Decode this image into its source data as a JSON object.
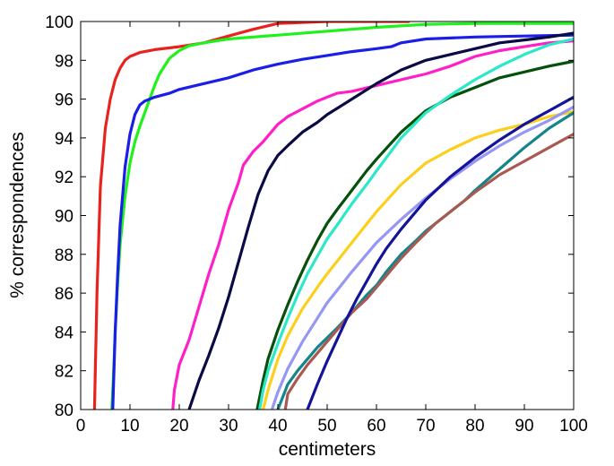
{
  "chart_data": {
    "type": "line",
    "title": "",
    "xlabel": "centimeters",
    "ylabel": "% correspondences",
    "xlim": [
      0,
      100
    ],
    "ylim": [
      80,
      100
    ],
    "xticks": [
      0,
      10,
      20,
      30,
      40,
      50,
      60,
      70,
      80,
      90,
      100
    ],
    "yticks": [
      80,
      82,
      84,
      86,
      88,
      90,
      92,
      94,
      96,
      98,
      100
    ],
    "grid": false,
    "legend": "none",
    "series": [
      {
        "color": "#e8231e",
        "x": [
          2.8,
          3.3,
          4,
          5,
          6,
          7,
          8,
          9,
          10,
          12,
          15,
          20,
          25,
          30,
          35,
          40,
          50,
          60,
          66.5
        ],
        "y": [
          80,
          86,
          91.5,
          94.5,
          96,
          97,
          97.6,
          98,
          98.2,
          98.4,
          98.55,
          98.7,
          98.9,
          99.25,
          99.6,
          99.9,
          100,
          100,
          100
        ]
      },
      {
        "color": "#1ff21a",
        "x": [
          6.3,
          6.6,
          7,
          7.5,
          8,
          9,
          10,
          11,
          12,
          13,
          14,
          15,
          16,
          18,
          20,
          22,
          25,
          30,
          40,
          50,
          60,
          70,
          80,
          90,
          100
        ],
        "y": [
          80,
          81.5,
          84,
          86.5,
          88.5,
          91,
          92.7,
          93.8,
          94.6,
          95.3,
          96,
          96.7,
          97.3,
          98.1,
          98.5,
          98.75,
          98.9,
          99.1,
          99.3,
          99.5,
          99.7,
          99.85,
          99.9,
          99.9,
          99.9
        ]
      },
      {
        "color": "#1a1ee6",
        "x": [
          6.5,
          7,
          7.5,
          8,
          9,
          10,
          11,
          12,
          13,
          15,
          18,
          20,
          25,
          30,
          35,
          40,
          45,
          50,
          55,
          60,
          63,
          65,
          70,
          80,
          90,
          100
        ],
        "y": [
          80,
          84,
          87,
          89.5,
          92.5,
          94.2,
          95.2,
          95.7,
          95.9,
          96.1,
          96.3,
          96.5,
          96.8,
          97.1,
          97.5,
          97.8,
          98.05,
          98.25,
          98.45,
          98.6,
          98.7,
          98.9,
          99.1,
          99.2,
          99.25,
          99.3
        ]
      },
      {
        "color": "#ff1fc6",
        "x": [
          18.7,
          19,
          20,
          22,
          24,
          26,
          28,
          30,
          32,
          33,
          35,
          37,
          38,
          40,
          42,
          45,
          48,
          50,
          52,
          55,
          60,
          65,
          70,
          75,
          80,
          85,
          90,
          95,
          100
        ],
        "y": [
          80,
          81,
          82.3,
          83.6,
          85.3,
          87,
          88.5,
          90.3,
          91.7,
          92.6,
          93.3,
          93.8,
          94.1,
          94.7,
          95.1,
          95.5,
          95.9,
          96.1,
          96.3,
          96.4,
          96.7,
          97,
          97.3,
          97.7,
          98.2,
          98.5,
          98.7,
          98.9,
          99
        ]
      },
      {
        "color": "#0a0a45",
        "x": [
          22,
          24,
          26,
          28,
          30,
          32,
          34,
          36,
          38,
          40,
          42,
          45,
          48,
          50,
          55,
          60,
          65,
          70,
          75,
          80,
          85,
          90,
          95,
          100
        ],
        "y": [
          80,
          81.5,
          82.8,
          84.2,
          85.8,
          87.6,
          89.4,
          91.1,
          92.3,
          93.1,
          93.6,
          94.3,
          94.8,
          95.2,
          96,
          96.8,
          97.5,
          98,
          98.3,
          98.6,
          98.9,
          99.05,
          99.2,
          99.4
        ]
      },
      {
        "color": "#05500a",
        "x": [
          35.8,
          37,
          38,
          40,
          42,
          44,
          46,
          48,
          50,
          52,
          55,
          58,
          60,
          65,
          70,
          75,
          80,
          85,
          90,
          95,
          100
        ],
        "y": [
          80,
          81.5,
          82.6,
          84.1,
          85.4,
          86.6,
          87.7,
          88.7,
          89.6,
          90.3,
          91.3,
          92.3,
          92.9,
          94.3,
          95.4,
          96.1,
          96.6,
          97.1,
          97.4,
          97.7,
          97.95
        ]
      },
      {
        "color": "#2be8c8",
        "x": [
          36.3,
          37,
          38,
          40,
          42,
          44,
          46,
          48,
          50,
          52,
          55,
          58,
          60,
          65,
          70,
          75,
          80,
          85,
          90,
          95,
          100
        ],
        "y": [
          80,
          81,
          82,
          83.4,
          84.7,
          85.9,
          87,
          87.9,
          88.8,
          89.5,
          90.6,
          91.6,
          92.3,
          94,
          95.3,
          96.2,
          97,
          97.7,
          98.3,
          98.8,
          99.1
        ]
      },
      {
        "color": "#fccf1c",
        "x": [
          37,
          38,
          40,
          42,
          45,
          48,
          50,
          55,
          60,
          65,
          70,
          75,
          80,
          85,
          90,
          95,
          100
        ],
        "y": [
          80,
          81,
          82.6,
          83.8,
          85.2,
          86.3,
          87,
          88.6,
          90.2,
          91.6,
          92.7,
          93.4,
          94,
          94.4,
          94.7,
          95.1,
          95.35
        ]
      },
      {
        "color": "#9696f5",
        "x": [
          38.8,
          40,
          42,
          45,
          48,
          50,
          55,
          60,
          65,
          70,
          75,
          80,
          85,
          90,
          95,
          100
        ],
        "y": [
          80,
          80.9,
          82.1,
          83.5,
          84.7,
          85.5,
          87.1,
          88.6,
          89.8,
          90.9,
          91.9,
          92.8,
          93.6,
          94.3,
          94.9,
          95.6
        ]
      },
      {
        "color": "#14858a",
        "x": [
          40,
          42,
          44,
          46,
          48,
          50,
          52,
          55,
          58,
          60,
          62,
          65,
          68,
          70,
          72,
          75,
          78,
          80,
          85,
          90,
          95,
          100
        ],
        "y": [
          80,
          81.3,
          82,
          82.6,
          83.2,
          83.7,
          84.2,
          85,
          85.9,
          86.4,
          87.1,
          88,
          88.7,
          89.2,
          89.6,
          90.2,
          90.8,
          91.3,
          92.4,
          93.5,
          94.5,
          95.3
        ]
      },
      {
        "color": "#a85a52",
        "x": [
          41.5,
          42,
          44,
          46,
          48,
          50,
          52,
          55,
          58,
          60,
          62,
          65,
          68,
          70,
          72,
          75,
          78,
          80,
          85,
          90,
          95,
          100
        ],
        "y": [
          80,
          80.8,
          81.6,
          82.3,
          82.9,
          83.5,
          84.1,
          85,
          85.7,
          86.3,
          86.9,
          87.8,
          88.6,
          89.1,
          89.6,
          90.2,
          90.8,
          91.2,
          92.1,
          92.8,
          93.5,
          94.2
        ]
      },
      {
        "color": "#14149a",
        "x": [
          46,
          48,
          50,
          52,
          54,
          56,
          58,
          60,
          62,
          65,
          68,
          70,
          75,
          80,
          85,
          90,
          95,
          100
        ],
        "y": [
          80,
          81.3,
          82.5,
          83.6,
          84.7,
          85.7,
          86.6,
          87.5,
          88.3,
          89.3,
          90.2,
          90.8,
          92,
          93,
          93.9,
          94.7,
          95.4,
          96.1
        ]
      }
    ]
  }
}
